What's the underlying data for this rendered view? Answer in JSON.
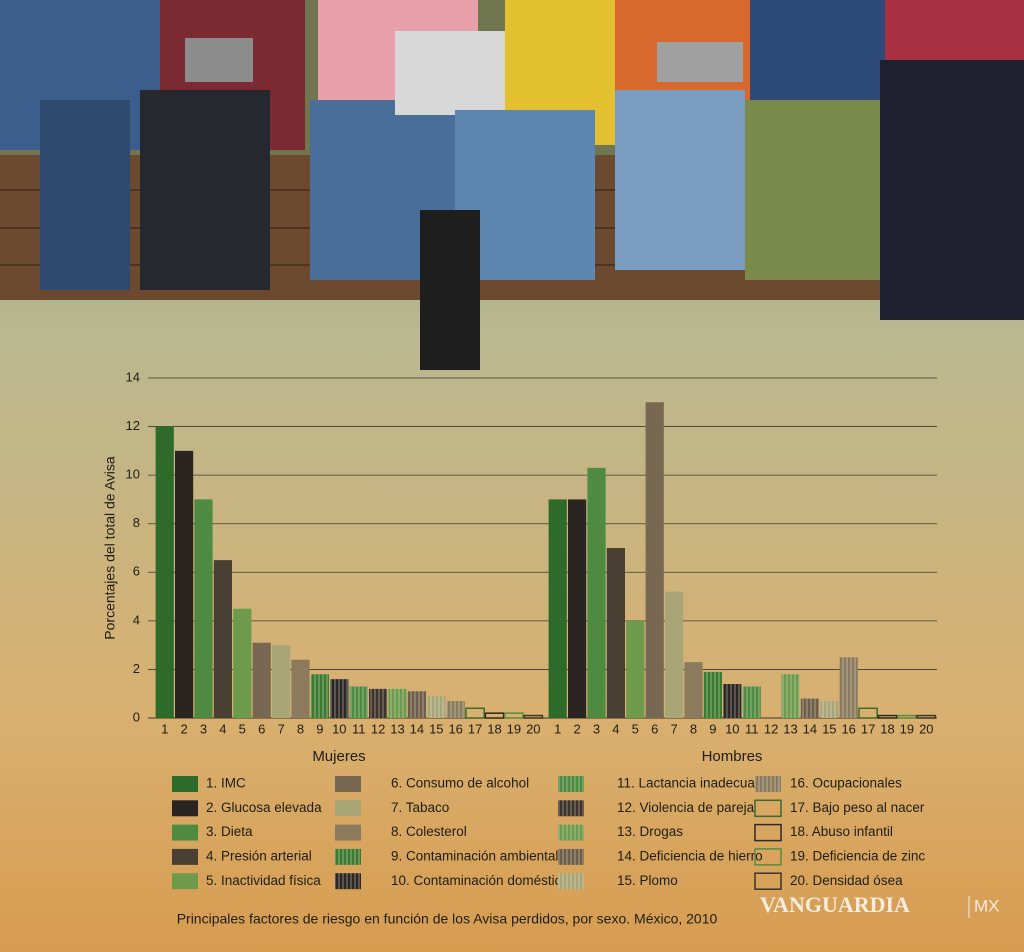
{
  "chart_data": {
    "type": "bar",
    "y_label": "Porcentajes del total de Avisa",
    "ylim": [
      0,
      14
    ],
    "yticks": [
      0,
      2,
      4,
      6,
      8,
      10,
      12,
      14
    ],
    "grid": true,
    "categories": [
      "1",
      "2",
      "3",
      "4",
      "5",
      "6",
      "7",
      "8",
      "9",
      "10",
      "11",
      "12",
      "13",
      "14",
      "15",
      "16",
      "17",
      "18",
      "19",
      "20"
    ],
    "panels": [
      {
        "label": "Mujeres",
        "values": [
          12,
          11,
          9,
          6.5,
          4.5,
          3.1,
          3.0,
          2.4,
          1.8,
          1.6,
          1.3,
          1.2,
          1.2,
          1.1,
          0.9,
          0.7,
          0.4,
          0.2,
          0.2,
          0.1
        ]
      },
      {
        "label": "Hombres",
        "values": [
          9,
          9,
          10.3,
          7,
          4,
          13,
          5.2,
          2.3,
          1.9,
          1.4,
          1.3,
          0,
          1.8,
          0.8,
          0.7,
          2.5,
          0.4,
          0.1,
          0.1,
          0.1
        ]
      }
    ],
    "legend": [
      {
        "label": "1. IMC",
        "color": "#2e6a29",
        "style": "solid"
      },
      {
        "label": "2. Glucosa elevada",
        "color": "#2a2521",
        "style": "solid"
      },
      {
        "label": "3. Dieta",
        "color": "#4f8a41",
        "style": "solid"
      },
      {
        "label": "4. Presión arterial",
        "color": "#4a3f33",
        "style": "solid"
      },
      {
        "label": "5. Inactividad física",
        "color": "#6e9a4b",
        "style": "solid"
      },
      {
        "label": "6.   Consumo de alcohol",
        "color": "#786852",
        "style": "solid"
      },
      {
        "label": "7.   Tabaco",
        "color": "#a8a676",
        "style": "solid"
      },
      {
        "label": "8.   Colesterol",
        "color": "#8b7b5c",
        "style": "solid"
      },
      {
        "label": "9.   Contaminación ambiental",
        "color": "#3c7a2f",
        "style": "striped"
      },
      {
        "label": "10. Contaminación doméstica",
        "color": "#2d2823",
        "style": "striped"
      },
      {
        "label": "11. Lactancia inadecuada",
        "color": "#4f8a41",
        "style": "striped"
      },
      {
        "label": "12. Violencia de pareja",
        "color": "#3e342a",
        "style": "striped"
      },
      {
        "label": "13. Drogas",
        "color": "#6e9a4b",
        "style": "striped"
      },
      {
        "label": "14. Deficiencia de hierro",
        "color": "#6e5d48",
        "style": "striped"
      },
      {
        "label": "15. Plomo",
        "color": "#a8a676",
        "style": "striped"
      },
      {
        "label": "16. Ocupacionales",
        "color": "#8b7b5c",
        "style": "striped"
      },
      {
        "label": "17. Bajo peso al nacer",
        "color": "#3c6a2f",
        "style": "outline"
      },
      {
        "label": "18. Abuso infantil",
        "color": "#2d2823",
        "style": "outline"
      },
      {
        "label": "19. Deficiencia de zinc",
        "color": "#5a8a41",
        "style": "outline"
      },
      {
        "label": "20. Densidad ósea",
        "color": "#3e342a",
        "style": "outline"
      }
    ],
    "caption": "Principales factores de riesgo en función de los Avisa perdidos, por sexo. México, 2010",
    "watermark": "VANGUARDIA",
    "watermark_tag": "MX"
  }
}
